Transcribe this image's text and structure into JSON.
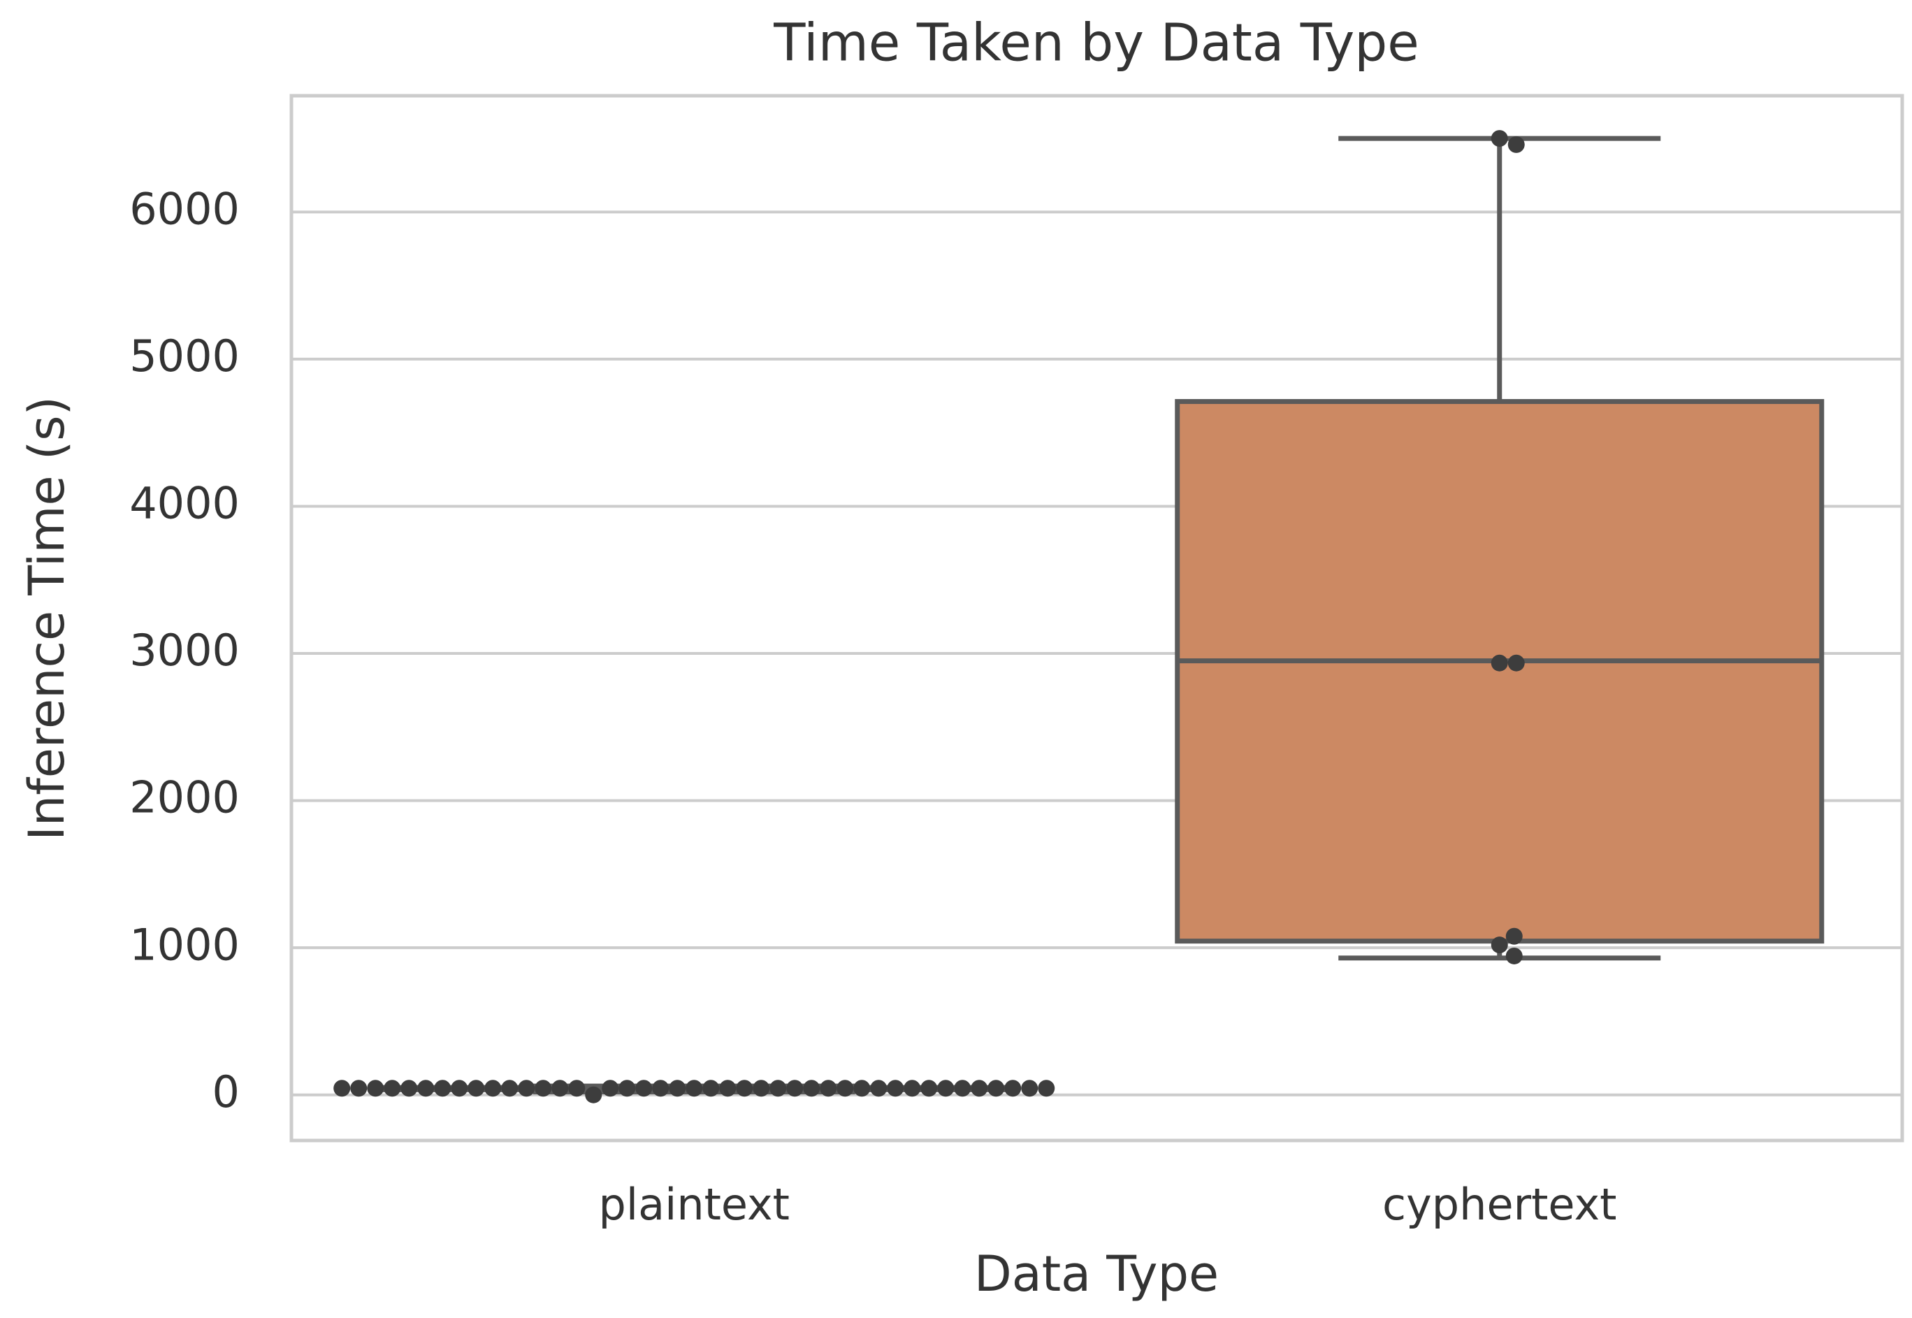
{
  "chart_data": {
    "type": "box",
    "title": "Time Taken by Data Type",
    "x_label": "Data Type",
    "y_label": "Inference Time (s)",
    "categories": [
      "plaintext",
      "cyphertext"
    ],
    "boxes": [
      {
        "min": 20,
        "q1": 35,
        "median": 45,
        "q3": 50,
        "max": 60,
        "color": "#5875a4",
        "points": [
          45,
          45,
          45,
          45,
          45,
          45,
          45,
          45,
          45,
          45,
          45,
          45,
          0,
          45,
          45,
          45,
          45,
          45,
          45,
          45,
          45,
          45,
          45,
          45,
          45,
          45,
          45,
          45,
          45,
          45,
          45,
          45,
          45,
          45,
          45,
          45,
          45,
          45,
          45,
          45,
          45,
          45,
          45
        ]
      },
      {
        "min": 930,
        "q1": 1045,
        "median": 2950,
        "q3": 4712,
        "max": 6500,
        "color": "#cc8963",
        "points": [
          6500,
          6458,
          2935,
          2935,
          1019,
          1078,
          944
        ]
      }
    ],
    "ylim": [
      -310,
      6790
    ],
    "yticks": [
      0,
      1000,
      2000,
      3000,
      4000,
      5000,
      6000
    ],
    "grid": true
  }
}
